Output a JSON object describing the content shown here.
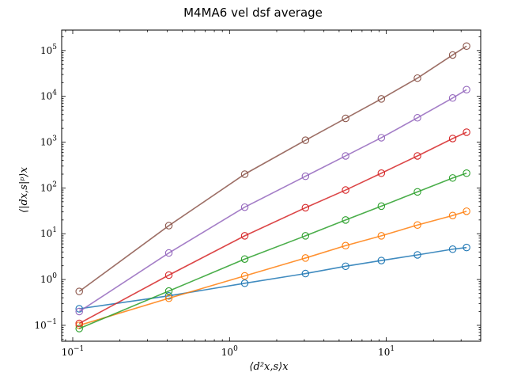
{
  "chart_data": {
    "type": "line",
    "title": "M4MA6 vel dsf average",
    "xlabel": "⟨d²x,s⟩x",
    "ylabel": "⟨|dx,s|ᵖ⟩x",
    "xscale": "log",
    "yscale": "log",
    "xlim": [
      0.085,
      40
    ],
    "ylim": [
      0.045,
      280000
    ],
    "grid": false,
    "legend": "none",
    "x_ticks": [
      {
        "base": "10",
        "exp": "−1",
        "value": 0.1
      },
      {
        "base": "10",
        "exp": "0",
        "value": 1
      },
      {
        "base": "10",
        "exp": "1",
        "value": 10
      }
    ],
    "y_ticks": [
      {
        "base": "10",
        "exp": "−1",
        "value": 0.1
      },
      {
        "base": "10",
        "exp": "0",
        "value": 1
      },
      {
        "base": "10",
        "exp": "1",
        "value": 10
      },
      {
        "base": "10",
        "exp": "2",
        "value": 100
      },
      {
        "base": "10",
        "exp": "3",
        "value": 1000
      },
      {
        "base": "10",
        "exp": "4",
        "value": 10000
      },
      {
        "base": "10",
        "exp": "5",
        "value": 100000
      }
    ],
    "x": [
      0.11,
      0.41,
      1.25,
      3.05,
      5.5,
      9.3,
      15.8,
      26.5,
      32.5
    ],
    "series": [
      {
        "color": "#1f77b4",
        "values": [
          0.23,
          0.44,
          0.83,
          1.35,
          1.95,
          2.6,
          3.45,
          4.6,
          5.0
        ]
      },
      {
        "color": "#ff7f0e",
        "values": [
          0.1,
          0.39,
          1.2,
          2.95,
          5.5,
          9.0,
          15.5,
          25.0,
          31.0
        ]
      },
      {
        "color": "#2ca02c",
        "values": [
          0.085,
          0.56,
          2.8,
          9.0,
          20.0,
          40.0,
          82.0,
          165.0,
          210.0
        ]
      },
      {
        "color": "#d62728",
        "values": [
          0.11,
          1.25,
          9.0,
          37.0,
          90.0,
          210.0,
          500.0,
          1200.0,
          1650.0
        ]
      },
      {
        "color": "#9467bd",
        "values": [
          0.2,
          3.8,
          38.0,
          180.0,
          500.0,
          1250.0,
          3400.0,
          9200.0,
          14000.0
        ]
      },
      {
        "color": "#8c564b",
        "values": [
          0.55,
          15.0,
          200.0,
          1100.0,
          3300.0,
          8800.0,
          25000.0,
          80000.0,
          125000.0
        ]
      }
    ]
  }
}
